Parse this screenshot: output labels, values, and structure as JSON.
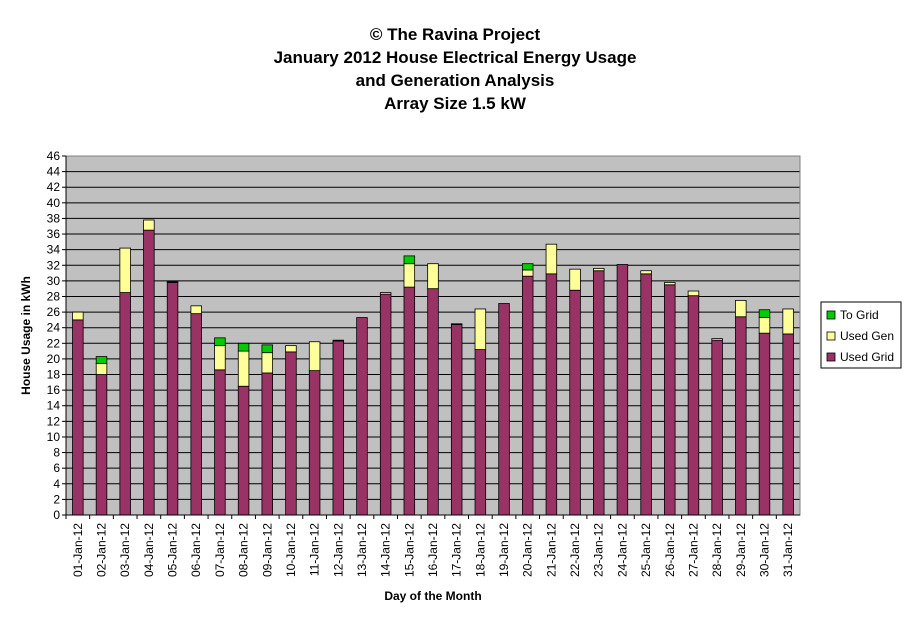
{
  "chart_data": {
    "type": "bar",
    "stacked": true,
    "title": [
      "© The Ravina Project",
      "January 2012 House Electrical Energy Usage",
      "and Generation Analysis",
      "Array Size 1.5 kW"
    ],
    "xlabel": "Day of the Month",
    "ylabel": "House Usage in kWh",
    "ylim": [
      0,
      46
    ],
    "ytick_step": 2,
    "grid": true,
    "legend_position": "right",
    "categories": [
      "01-Jan-12",
      "02-Jan-12",
      "03-Jan-12",
      "04-Jan-12",
      "05-Jan-12",
      "06-Jan-12",
      "07-Jan-12",
      "08-Jan-12",
      "09-Jan-12",
      "10-Jan-12",
      "11-Jan-12",
      "12-Jan-12",
      "13-Jan-12",
      "14-Jan-12",
      "15-Jan-12",
      "16-Jan-12",
      "17-Jan-12",
      "18-Jan-12",
      "19-Jan-12",
      "20-Jan-12",
      "21-Jan-12",
      "22-Jan-12",
      "23-Jan-12",
      "24-Jan-12",
      "25-Jan-12",
      "26-Jan-12",
      "27-Jan-12",
      "28-Jan-12",
      "29-Jan-12",
      "30-Jan-12",
      "31-Jan-12"
    ],
    "series": [
      {
        "name": "Used Grid",
        "color": "#993366",
        "values": [
          25.0,
          18.0,
          28.5,
          36.5,
          29.8,
          25.8,
          18.6,
          16.5,
          18.2,
          20.9,
          18.5,
          22.3,
          25.3,
          28.3,
          29.2,
          29.0,
          24.4,
          21.2,
          27.1,
          30.6,
          30.9,
          28.8,
          31.3,
          32.1,
          30.9,
          29.5,
          28.1,
          22.4,
          25.4,
          23.3,
          23.2
        ]
      },
      {
        "name": "Used Gen",
        "color": "#ffff99",
        "values": [
          1.0,
          1.4,
          5.7,
          1.3,
          0.1,
          1.0,
          3.1,
          4.5,
          2.6,
          0.8,
          3.7,
          0.1,
          0.0,
          0.2,
          3.0,
          3.2,
          0.1,
          5.2,
          0.0,
          0.8,
          3.8,
          2.7,
          0.3,
          0.0,
          0.4,
          0.3,
          0.6,
          0.2,
          2.1,
          2.0,
          3.2
        ]
      },
      {
        "name": "To Grid",
        "color": "#00cc00",
        "values": [
          0.0,
          0.9,
          0.0,
          0.0,
          0.0,
          0.0,
          1.0,
          1.0,
          1.0,
          0.0,
          0.0,
          0.0,
          0.0,
          0.0,
          1.0,
          0.0,
          0.0,
          0.0,
          0.0,
          0.8,
          0.0,
          0.0,
          0.0,
          0.0,
          0.0,
          0.0,
          0.0,
          0.0,
          0.0,
          1.0,
          0.0
        ]
      }
    ],
    "legend_order": [
      "To Grid",
      "Used Gen",
      "Used Grid"
    ],
    "plot_background": "#c0c0c0",
    "gridline_color": "#000000"
  }
}
